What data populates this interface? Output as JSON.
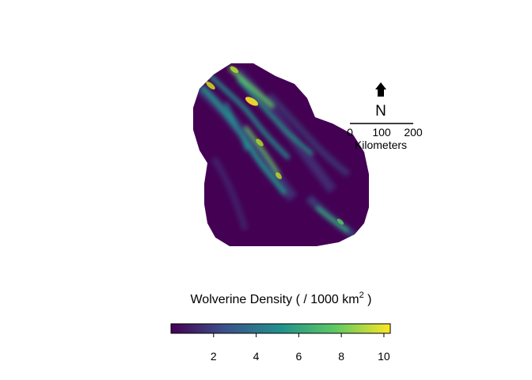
{
  "map": {
    "subject": "Wolverine Density",
    "north_arrow": {
      "letter": "N"
    },
    "scale_bar": {
      "ticks": [
        "0",
        "100",
        "200"
      ],
      "unit": "Kilometers"
    }
  },
  "legend": {
    "title_prefix": "Wolverine Density ( / 1000 km",
    "title_superscript": "2",
    "title_suffix": " )",
    "colormap": "viridis",
    "colors": [
      "#440154",
      "#3b528b",
      "#21918c",
      "#5ec962",
      "#fde725"
    ],
    "range": [
      0,
      10.3
    ],
    "tick_labels": [
      "2",
      "4",
      "6",
      "8",
      "10"
    ]
  }
}
